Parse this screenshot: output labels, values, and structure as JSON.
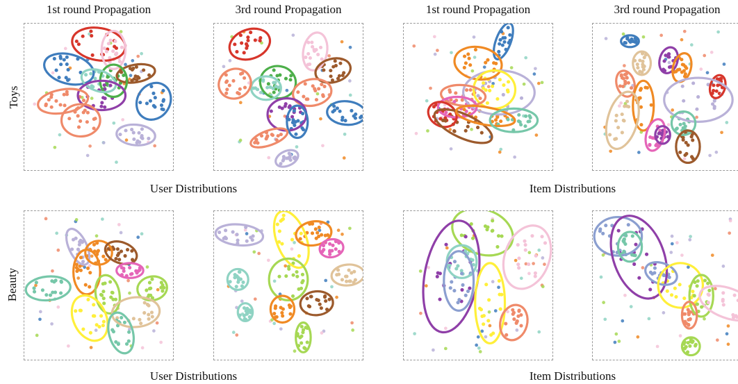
{
  "col_titles": [
    "1st round Propagation",
    "3rd round Propagation",
    "1st round Propagation",
    "3rd round Propagation"
  ],
  "row_labels": [
    "Toys",
    "Beauty"
  ],
  "group_captions": [
    "User Distributions",
    "Item Distributions"
  ],
  "colors": {
    "red": "#d7362b",
    "blue": "#3f7dbd",
    "pink": "#f4c3d8",
    "brown": "#9c5a2c",
    "purple": "#8f3fa8",
    "green": "#4daf4a",
    "teal": "#8fd3c3",
    "orange": "#f08a24",
    "salmon": "#ef8a6a",
    "lavender": "#b9b1d8",
    "lime": "#a6d854",
    "yellow": "#ffef3a",
    "tan": "#e0c39a",
    "magenta": "#e565b8",
    "slate": "#8b9fd0",
    "mint": "#76c7a9",
    "frame": "#9a9a9a"
  },
  "chart_data": {
    "type": "scatter",
    "panels": [
      {
        "name": "toys-user-round1",
        "clusters": [
          {
            "color": "red",
            "cx": 0.5,
            "cy": 0.14,
            "rx": 0.18,
            "ry": 0.11,
            "rot": 10
          },
          {
            "color": "blue",
            "cx": 0.3,
            "cy": 0.31,
            "rx": 0.17,
            "ry": 0.1,
            "rot": 15
          },
          {
            "color": "pink",
            "cx": 0.6,
            "cy": 0.18,
            "rx": 0.08,
            "ry": 0.13,
            "rot": 0
          },
          {
            "color": "brown",
            "cx": 0.75,
            "cy": 0.34,
            "rx": 0.13,
            "ry": 0.06,
            "rot": -10
          },
          {
            "color": "green",
            "cx": 0.6,
            "cy": 0.39,
            "rx": 0.09,
            "ry": 0.11,
            "rot": 0
          },
          {
            "color": "teal",
            "cx": 0.5,
            "cy": 0.39,
            "rx": 0.12,
            "ry": 0.07,
            "rot": 20
          },
          {
            "color": "purple",
            "cx": 0.52,
            "cy": 0.49,
            "rx": 0.16,
            "ry": 0.1,
            "rot": 0
          },
          {
            "color": "salmon",
            "cx": 0.26,
            "cy": 0.53,
            "rx": 0.17,
            "ry": 0.08,
            "rot": -10
          },
          {
            "color": "salmon",
            "cx": 0.38,
            "cy": 0.66,
            "rx": 0.13,
            "ry": 0.11,
            "rot": 0
          },
          {
            "color": "blue",
            "cx": 0.87,
            "cy": 0.53,
            "rx": 0.11,
            "ry": 0.13,
            "rot": 30
          },
          {
            "color": "lavender",
            "cx": 0.75,
            "cy": 0.76,
            "rx": 0.13,
            "ry": 0.07,
            "rot": 5
          }
        ]
      },
      {
        "name": "toys-user-round3",
        "clusters": [
          {
            "color": "red",
            "cx": 0.24,
            "cy": 0.14,
            "rx": 0.14,
            "ry": 0.1,
            "rot": -20
          },
          {
            "color": "pink",
            "cx": 0.68,
            "cy": 0.19,
            "rx": 0.08,
            "ry": 0.13,
            "rot": 10
          },
          {
            "color": "brown",
            "cx": 0.8,
            "cy": 0.32,
            "rx": 0.12,
            "ry": 0.08,
            "rot": -15
          },
          {
            "color": "green",
            "cx": 0.43,
            "cy": 0.4,
            "rx": 0.12,
            "ry": 0.11,
            "rot": 10
          },
          {
            "color": "teal",
            "cx": 0.35,
            "cy": 0.44,
            "rx": 0.1,
            "ry": 0.08,
            "rot": 0
          },
          {
            "color": "salmon",
            "cx": 0.14,
            "cy": 0.41,
            "rx": 0.11,
            "ry": 0.1,
            "rot": -25
          },
          {
            "color": "salmon",
            "cx": 0.66,
            "cy": 0.47,
            "rx": 0.13,
            "ry": 0.09,
            "rot": -10
          },
          {
            "color": "purple",
            "cx": 0.49,
            "cy": 0.62,
            "rx": 0.13,
            "ry": 0.11,
            "rot": 0
          },
          {
            "color": "blue",
            "cx": 0.56,
            "cy": 0.67,
            "rx": 0.07,
            "ry": 0.11,
            "rot": 0
          },
          {
            "color": "blue",
            "cx": 0.89,
            "cy": 0.61,
            "rx": 0.13,
            "ry": 0.08,
            "rot": 5
          },
          {
            "color": "salmon",
            "cx": 0.37,
            "cy": 0.78,
            "rx": 0.13,
            "ry": 0.05,
            "rot": -20
          },
          {
            "color": "lavender",
            "cx": 0.49,
            "cy": 0.92,
            "rx": 0.08,
            "ry": 0.05,
            "rot": -25
          }
        ]
      },
      {
        "name": "toys-item-round1",
        "clusters": [
          {
            "color": "blue",
            "cx": 0.67,
            "cy": 0.12,
            "rx": 0.05,
            "ry": 0.13,
            "rot": 20
          },
          {
            "color": "orange",
            "cx": 0.5,
            "cy": 0.27,
            "rx": 0.16,
            "ry": 0.11,
            "rot": 10
          },
          {
            "color": "lavender",
            "cx": 0.64,
            "cy": 0.47,
            "rx": 0.24,
            "ry": 0.15,
            "rot": 0
          },
          {
            "color": "yellow",
            "cx": 0.61,
            "cy": 0.45,
            "rx": 0.14,
            "ry": 0.13,
            "rot": 0
          },
          {
            "color": "salmon",
            "cx": 0.4,
            "cy": 0.49,
            "rx": 0.15,
            "ry": 0.07,
            "rot": 5
          },
          {
            "color": "magenta",
            "cx": 0.36,
            "cy": 0.57,
            "rx": 0.13,
            "ry": 0.07,
            "rot": 0
          },
          {
            "color": "red",
            "cx": 0.26,
            "cy": 0.62,
            "rx": 0.1,
            "ry": 0.08,
            "rot": 30
          },
          {
            "color": "brown",
            "cx": 0.4,
            "cy": 0.7,
            "rx": 0.21,
            "ry": 0.08,
            "rot": 25
          },
          {
            "color": "orange",
            "cx": 0.55,
            "cy": 0.63,
            "rx": 0.2,
            "ry": 0.06,
            "rot": 10
          },
          {
            "color": "mint",
            "cx": 0.74,
            "cy": 0.66,
            "rx": 0.16,
            "ry": 0.08,
            "rot": 0
          }
        ]
      },
      {
        "name": "toys-item-round3",
        "clusters": [
          {
            "color": "blue",
            "cx": 0.25,
            "cy": 0.12,
            "rx": 0.06,
            "ry": 0.04,
            "rot": 0
          },
          {
            "color": "tan",
            "cx": 0.33,
            "cy": 0.27,
            "rx": 0.06,
            "ry": 0.08,
            "rot": 0
          },
          {
            "color": "purple",
            "cx": 0.51,
            "cy": 0.25,
            "rx": 0.06,
            "ry": 0.09,
            "rot": 15
          },
          {
            "color": "orange",
            "cx": 0.6,
            "cy": 0.3,
            "rx": 0.06,
            "ry": 0.1,
            "rot": 15
          },
          {
            "color": "salmon",
            "cx": 0.22,
            "cy": 0.41,
            "rx": 0.06,
            "ry": 0.09,
            "rot": -15
          },
          {
            "color": "red",
            "cx": 0.84,
            "cy": 0.43,
            "rx": 0.05,
            "ry": 0.08,
            "rot": 15
          },
          {
            "color": "lavender",
            "cx": 0.71,
            "cy": 0.52,
            "rx": 0.23,
            "ry": 0.15,
            "rot": 0
          },
          {
            "color": "orange",
            "cx": 0.34,
            "cy": 0.56,
            "rx": 0.07,
            "ry": 0.17,
            "rot": 0
          },
          {
            "color": "tan",
            "cx": 0.2,
            "cy": 0.66,
            "rx": 0.1,
            "ry": 0.2,
            "rot": 15
          },
          {
            "color": "mint",
            "cx": 0.61,
            "cy": 0.68,
            "rx": 0.08,
            "ry": 0.08,
            "rot": 0
          },
          {
            "color": "magenta",
            "cx": 0.42,
            "cy": 0.76,
            "rx": 0.06,
            "ry": 0.11,
            "rot": 15
          },
          {
            "color": "purple",
            "cx": 0.47,
            "cy": 0.76,
            "rx": 0.05,
            "ry": 0.06,
            "rot": 0
          },
          {
            "color": "brown",
            "cx": 0.64,
            "cy": 0.84,
            "rx": 0.08,
            "ry": 0.11,
            "rot": 0
          }
        ]
      },
      {
        "name": "beauty-user-round1",
        "clusters": [
          {
            "color": "lavender",
            "cx": 0.36,
            "cy": 0.24,
            "rx": 0.06,
            "ry": 0.13,
            "rot": -25
          },
          {
            "color": "orange",
            "cx": 0.5,
            "cy": 0.28,
            "rx": 0.09,
            "ry": 0.08,
            "rot": 0
          },
          {
            "color": "brown",
            "cx": 0.65,
            "cy": 0.28,
            "rx": 0.11,
            "ry": 0.07,
            "rot": 20
          },
          {
            "color": "magenta",
            "cx": 0.71,
            "cy": 0.4,
            "rx": 0.09,
            "ry": 0.05,
            "rot": 0
          },
          {
            "color": "orange",
            "cx": 0.42,
            "cy": 0.41,
            "rx": 0.09,
            "ry": 0.15,
            "rot": 0
          },
          {
            "color": "mint",
            "cx": 0.16,
            "cy": 0.52,
            "rx": 0.15,
            "ry": 0.08,
            "rot": -5
          },
          {
            "color": "lime",
            "cx": 0.86,
            "cy": 0.52,
            "rx": 0.1,
            "ry": 0.08,
            "rot": -10
          },
          {
            "color": "lime",
            "cx": 0.56,
            "cy": 0.56,
            "rx": 0.08,
            "ry": 0.13,
            "rot": -10
          },
          {
            "color": "tan",
            "cx": 0.75,
            "cy": 0.68,
            "rx": 0.16,
            "ry": 0.1,
            "rot": -5
          },
          {
            "color": "yellow",
            "cx": 0.44,
            "cy": 0.72,
            "rx": 0.11,
            "ry": 0.16,
            "rot": -25
          },
          {
            "color": "mint",
            "cx": 0.65,
            "cy": 0.82,
            "rx": 0.08,
            "ry": 0.14,
            "rot": -15
          }
        ]
      },
      {
        "name": "beauty-user-round3",
        "clusters": [
          {
            "color": "lavender",
            "cx": 0.17,
            "cy": 0.16,
            "rx": 0.16,
            "ry": 0.07,
            "rot": 5
          },
          {
            "color": "yellow",
            "cx": 0.52,
            "cy": 0.19,
            "rx": 0.1,
            "ry": 0.2,
            "rot": -20
          },
          {
            "color": "orange",
            "cx": 0.67,
            "cy": 0.15,
            "rx": 0.12,
            "ry": 0.08,
            "rot": -10
          },
          {
            "color": "magenta",
            "cx": 0.79,
            "cy": 0.25,
            "rx": 0.08,
            "ry": 0.06,
            "rot": -10
          },
          {
            "color": "lime",
            "cx": 0.5,
            "cy": 0.46,
            "rx": 0.13,
            "ry": 0.14,
            "rot": 0
          },
          {
            "color": "tan",
            "cx": 0.9,
            "cy": 0.43,
            "rx": 0.11,
            "ry": 0.07,
            "rot": -5
          },
          {
            "color": "teal",
            "cx": 0.16,
            "cy": 0.46,
            "rx": 0.07,
            "ry": 0.07,
            "rot": 0
          },
          {
            "color": "brown",
            "cx": 0.69,
            "cy": 0.62,
            "rx": 0.11,
            "ry": 0.08,
            "rot": -5
          },
          {
            "color": "orange",
            "cx": 0.46,
            "cy": 0.66,
            "rx": 0.08,
            "ry": 0.09,
            "rot": 0
          },
          {
            "color": "teal",
            "cx": 0.21,
            "cy": 0.68,
            "rx": 0.05,
            "ry": 0.06,
            "rot": 0
          },
          {
            "color": "lime",
            "cx": 0.6,
            "cy": 0.85,
            "rx": 0.05,
            "ry": 0.1,
            "rot": 0
          }
        ]
      },
      {
        "name": "beauty-item-round1",
        "clusters": [
          {
            "color": "lime",
            "cx": 0.53,
            "cy": 0.14,
            "rx": 0.21,
            "ry": 0.15,
            "rot": 20
          },
          {
            "color": "pink",
            "cx": 0.83,
            "cy": 0.31,
            "rx": 0.15,
            "ry": 0.22,
            "rot": 20
          },
          {
            "color": "purple",
            "cx": 0.32,
            "cy": 0.44,
            "rx": 0.18,
            "ry": 0.38,
            "rot": 10
          },
          {
            "color": "teal",
            "cx": 0.39,
            "cy": 0.34,
            "rx": 0.1,
            "ry": 0.11,
            "rot": 0
          },
          {
            "color": "slate",
            "cx": 0.37,
            "cy": 0.47,
            "rx": 0.1,
            "ry": 0.2,
            "rot": 0
          },
          {
            "color": "yellow",
            "cx": 0.58,
            "cy": 0.62,
            "rx": 0.1,
            "ry": 0.27,
            "rot": 0
          },
          {
            "color": "salmon",
            "cx": 0.74,
            "cy": 0.75,
            "rx": 0.09,
            "ry": 0.12,
            "rot": 15
          }
        ]
      },
      {
        "name": "beauty-item-round3",
        "clusters": [
          {
            "color": "slate",
            "cx": 0.17,
            "cy": 0.17,
            "rx": 0.16,
            "ry": 0.13,
            "rot": 0
          },
          {
            "color": "purple",
            "cx": 0.31,
            "cy": 0.31,
            "rx": 0.17,
            "ry": 0.29,
            "rot": -20
          },
          {
            "color": "mint",
            "cx": 0.25,
            "cy": 0.24,
            "rx": 0.08,
            "ry": 0.1,
            "rot": 0
          },
          {
            "color": "slate",
            "cx": 0.46,
            "cy": 0.42,
            "rx": 0.11,
            "ry": 0.07,
            "rot": 20
          },
          {
            "color": "yellow",
            "cx": 0.59,
            "cy": 0.5,
            "rx": 0.15,
            "ry": 0.15,
            "rot": 15
          },
          {
            "color": "lime",
            "cx": 0.73,
            "cy": 0.57,
            "rx": 0.08,
            "ry": 0.14,
            "rot": 0
          },
          {
            "color": "pink",
            "cx": 0.91,
            "cy": 0.62,
            "rx": 0.2,
            "ry": 0.1,
            "rot": 20
          },
          {
            "color": "salmon",
            "cx": 0.65,
            "cy": 0.7,
            "rx": 0.05,
            "ry": 0.09,
            "rot": 0
          },
          {
            "color": "lime",
            "cx": 0.66,
            "cy": 0.91,
            "rx": 0.06,
            "ry": 0.06,
            "rot": 0
          }
        ]
      }
    ]
  }
}
